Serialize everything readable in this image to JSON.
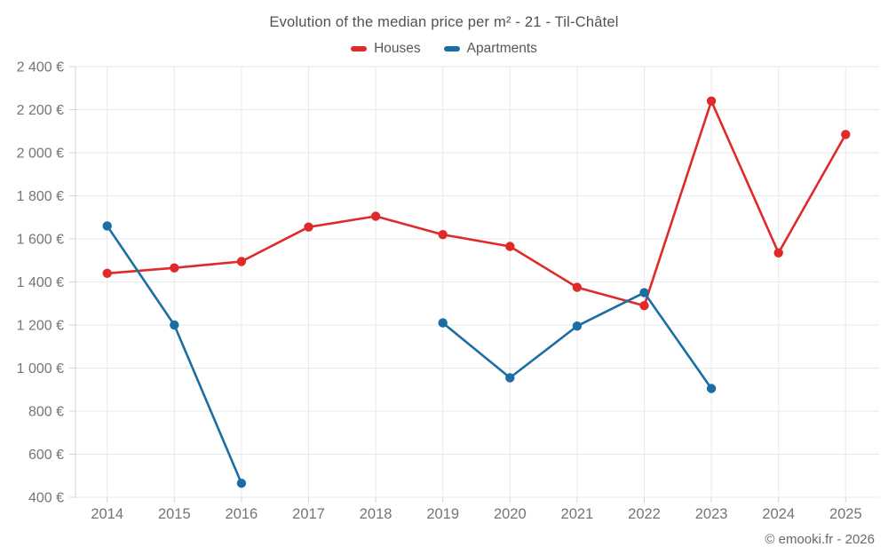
{
  "header": {
    "title": "Evolution of the median price per m² - 21 - Til-Châtel"
  },
  "footer": {
    "copyright": "© emooki.fr - 2026"
  },
  "colors": {
    "houses": "#e02a2a",
    "apartments": "#1a6ea4",
    "grid": "#e9e9e9",
    "axis": "#d4d4d4",
    "tick_text": "#757575",
    "title_text": "#4e5256",
    "background": "#ffffff"
  },
  "chart_data": {
    "type": "line",
    "title": "Evolution of the median price per m² - 21 - Til-Châtel",
    "xlabel": "",
    "ylabel": "",
    "x": [
      "2014",
      "2015",
      "2016",
      "2017",
      "2018",
      "2019",
      "2020",
      "2021",
      "2022",
      "2023",
      "2024",
      "2025"
    ],
    "series": [
      {
        "name": "Houses",
        "color": "#e02a2a",
        "values": [
          1440,
          1465,
          1495,
          1655,
          1705,
          1620,
          1565,
          1375,
          1290,
          2240,
          1535,
          2085
        ]
      },
      {
        "name": "Apartments",
        "color": "#1a6ea4",
        "values": [
          1660,
          1200,
          465,
          null,
          null,
          1210,
          955,
          1195,
          1350,
          905,
          null,
          null
        ]
      }
    ],
    "ylim": [
      400,
      2400
    ],
    "ytick_step": 200,
    "ytick_values": [
      400,
      600,
      800,
      1000,
      1200,
      1400,
      1600,
      1800,
      2000,
      2200,
      2400
    ],
    "ytick_labels": [
      "400 €",
      "600 €",
      "800 €",
      "1 000 €",
      "1 200 €",
      "1 400 €",
      "1 600 €",
      "1 800 €",
      "2 000 €",
      "2 200 €",
      "2 400 €"
    ],
    "grid": true,
    "legend_position": "top",
    "marker": "circle",
    "currency": "€"
  }
}
